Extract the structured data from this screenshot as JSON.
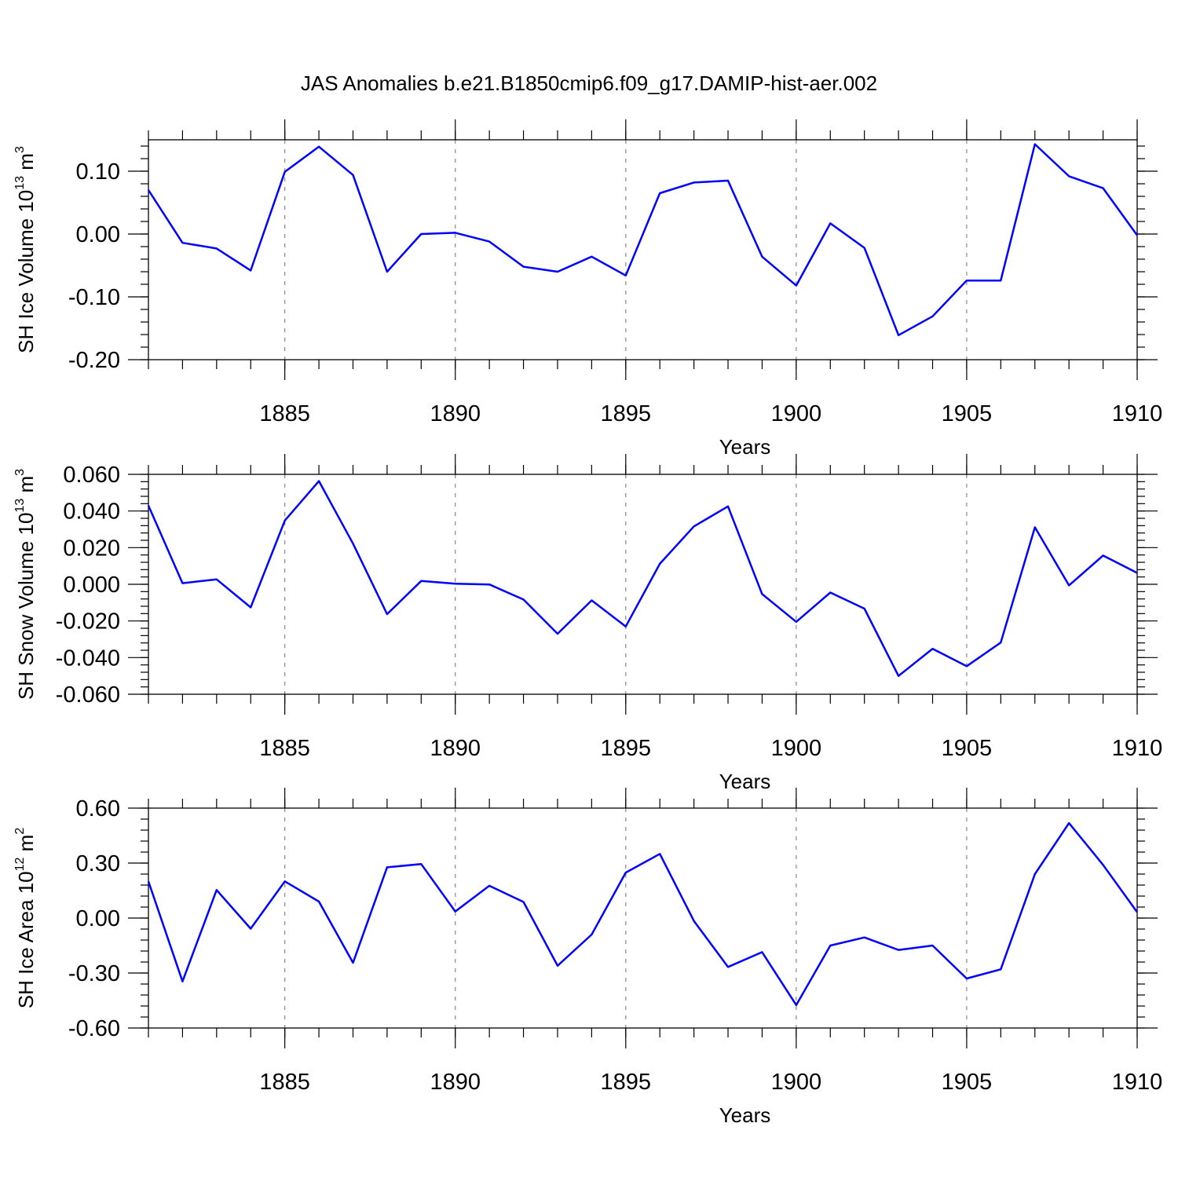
{
  "title": "JAS Anomalies b.e21.B1850cmip6.f09_g17.DAMIP-hist-aer.002",
  "colors": {
    "series": "#0000ff",
    "grid": "#888888",
    "axis": "#000000"
  },
  "chart_data": [
    {
      "type": "line",
      "xlabel": "Years",
      "ylabel_main": "SH Ice Volume 10",
      "ylabel_sup1": "13",
      "ylabel_unit": " m",
      "ylabel_sup2": "3",
      "xlim": [
        1881,
        1910
      ],
      "ylim": [
        -0.2,
        0.15
      ],
      "y_ticks": [
        -0.2,
        -0.1,
        0.0,
        0.1
      ],
      "y_tick_labels": [
        "-0.20",
        "-0.10",
        "0.00",
        "0.10"
      ],
      "x_ticks": [
        1885,
        1890,
        1895,
        1900,
        1905,
        1910
      ],
      "x_tick_labels": [
        "1885",
        "1890",
        "1895",
        "1900",
        "1905",
        "1910"
      ],
      "grid": "vertical dashed at major x ticks",
      "x": [
        1881,
        1882,
        1883,
        1884,
        1885,
        1886,
        1887,
        1888,
        1889,
        1890,
        1891,
        1892,
        1893,
        1894,
        1895,
        1896,
        1897,
        1898,
        1899,
        1900,
        1901,
        1902,
        1903,
        1904,
        1905,
        1906,
        1907,
        1908,
        1909,
        1910
      ],
      "values": [
        0.07,
        -0.014,
        -0.023,
        -0.058,
        0.099,
        0.139,
        0.094,
        -0.06,
        0.0,
        0.002,
        -0.012,
        -0.052,
        -0.06,
        -0.036,
        -0.066,
        0.065,
        0.082,
        0.085,
        -0.036,
        -0.082,
        0.017,
        -0.022,
        -0.161,
        -0.131,
        -0.074,
        -0.074,
        0.143,
        0.092,
        0.073,
        -0.002
      ]
    },
    {
      "type": "line",
      "xlabel": "Years",
      "ylabel_main": "SH Snow Volume 10",
      "ylabel_sup1": "13",
      "ylabel_unit": " m",
      "ylabel_sup2": "3",
      "xlim": [
        1881,
        1910
      ],
      "ylim": [
        -0.06,
        0.06
      ],
      "y_ticks": [
        -0.06,
        -0.04,
        -0.02,
        0.0,
        0.02,
        0.04,
        0.06
      ],
      "y_tick_labels": [
        "-0.060",
        "-0.040",
        "-0.020",
        "0.000",
        "0.020",
        "0.040",
        "0.060"
      ],
      "x_ticks": [
        1885,
        1890,
        1895,
        1900,
        1905,
        1910
      ],
      "x_tick_labels": [
        "1885",
        "1890",
        "1895",
        "1900",
        "1905",
        "1910"
      ],
      "grid": "vertical dashed at major x ticks",
      "x": [
        1881,
        1882,
        1883,
        1884,
        1885,
        1886,
        1887,
        1888,
        1889,
        1890,
        1891,
        1892,
        1893,
        1894,
        1895,
        1896,
        1897,
        1898,
        1899,
        1900,
        1901,
        1902,
        1903,
        1904,
        1905,
        1906,
        1907,
        1908,
        1909,
        1910
      ],
      "values": [
        0.043,
        0.0006,
        0.0027,
        -0.0126,
        0.0348,
        0.0563,
        0.0222,
        -0.0163,
        0.0018,
        0.0003,
        -0.0001,
        -0.0083,
        -0.027,
        -0.0088,
        -0.023,
        0.0112,
        0.0316,
        0.0425,
        -0.0053,
        -0.0205,
        -0.0045,
        -0.0133,
        -0.05,
        -0.0352,
        -0.0447,
        -0.0318,
        0.0311,
        -0.0006,
        0.0157,
        0.0062
      ]
    },
    {
      "type": "line",
      "xlabel": "Years",
      "ylabel_main": "SH Ice Area 10",
      "ylabel_sup1": "12",
      "ylabel_unit": " m",
      "ylabel_sup2": "2",
      "xlim": [
        1881,
        1910
      ],
      "ylim": [
        -0.6,
        0.6
      ],
      "y_ticks": [
        -0.6,
        -0.3,
        0.0,
        0.3,
        0.6
      ],
      "y_tick_labels": [
        "-0.60",
        "-0.30",
        "0.00",
        "0.30",
        "0.60"
      ],
      "x_ticks": [
        1885,
        1890,
        1895,
        1900,
        1905,
        1910
      ],
      "x_tick_labels": [
        "1885",
        "1890",
        "1895",
        "1900",
        "1905",
        "1910"
      ],
      "grid": "vertical dashed at major x ticks",
      "x": [
        1881,
        1882,
        1883,
        1884,
        1885,
        1886,
        1887,
        1888,
        1889,
        1890,
        1891,
        1892,
        1893,
        1894,
        1895,
        1896,
        1897,
        1898,
        1899,
        1900,
        1901,
        1902,
        1903,
        1904,
        1905,
        1906,
        1907,
        1908,
        1909,
        1910
      ],
      "values": [
        0.2,
        -0.346,
        0.153,
        -0.058,
        0.2,
        0.09,
        -0.244,
        0.277,
        0.295,
        0.036,
        0.176,
        0.088,
        -0.26,
        -0.09,
        0.248,
        0.35,
        -0.016,
        -0.267,
        -0.186,
        -0.475,
        -0.15,
        -0.106,
        -0.174,
        -0.15,
        -0.33,
        -0.28,
        0.24,
        0.518,
        0.29,
        0.032
      ]
    }
  ]
}
